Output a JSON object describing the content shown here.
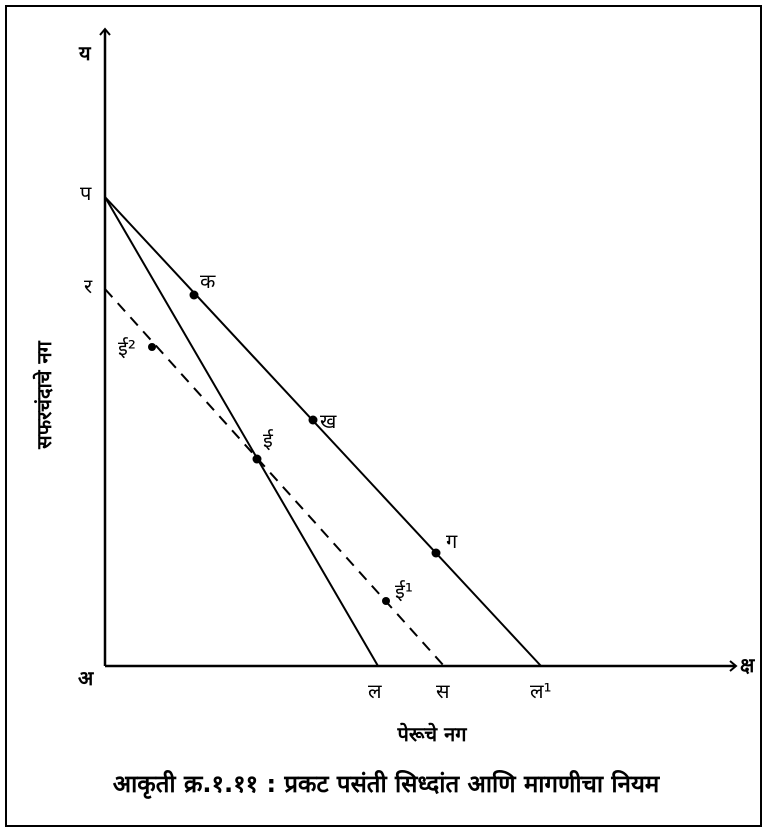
{
  "diagram": {
    "axes": {
      "y_label": "य",
      "x_label": "क्ष",
      "origin_label": "अ",
      "y_axis_title": "सफरचंदाचे नग",
      "x_axis_title": "पेरूचे नग"
    },
    "intercepts": {
      "p": "प",
      "r": "र",
      "l": "ल",
      "s": "स",
      "l1": "ल¹"
    },
    "points": {
      "k": "क",
      "kh": "ख",
      "g": "ग",
      "e": "ई",
      "e1": "ई¹",
      "e2": "ई²"
    },
    "caption": "आकृती क्र.१.११ : प्रकट पसंती सिध्दांत आणि मागणीचा नियम"
  }
}
